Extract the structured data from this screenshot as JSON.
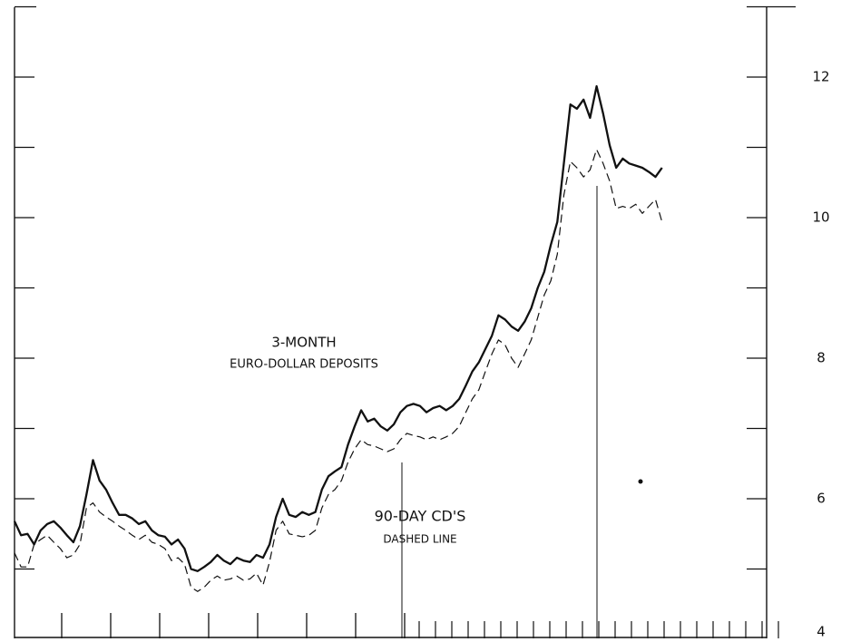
{
  "chart_data": {
    "type": "line",
    "annotations": [
      "3-MONTH",
      "EURO-DOLLAR DEPOSITS",
      "90-DAY CD'S",
      "DASHED LINE"
    ],
    "x": [
      0,
      1,
      2,
      3,
      4,
      5,
      6,
      7,
      8,
      9,
      10,
      11,
      12,
      13,
      14,
      15,
      16,
      17,
      18,
      19,
      20,
      21,
      22,
      23,
      24,
      25,
      26,
      27,
      28,
      29,
      30,
      31,
      32,
      33,
      34,
      35,
      36,
      37,
      38,
      39,
      40,
      41,
      42,
      43,
      44,
      45,
      46,
      47,
      48,
      49,
      50,
      51,
      52,
      53,
      54,
      55,
      56,
      57,
      58,
      59,
      60,
      61,
      62,
      63,
      64,
      65,
      66,
      67,
      68,
      69,
      70,
      71,
      72,
      73,
      74,
      75,
      76,
      77,
      78,
      79,
      80,
      81,
      82,
      83,
      84,
      85,
      86,
      87,
      88,
      89,
      90,
      91,
      92,
      93,
      94,
      95,
      96,
      97,
      98,
      99
    ],
    "xlim": [
      0,
      115
    ],
    "ylim": [
      4,
      13
    ],
    "yticks": [
      4,
      6,
      8,
      10,
      12
    ],
    "minor_yticks": [
      5,
      7,
      9,
      11,
      13
    ],
    "series": [
      {
        "color": "#111111",
        "dashed": false,
        "values": [
          5.68,
          5.48,
          5.5,
          5.35,
          5.55,
          5.64,
          5.68,
          5.59,
          5.48,
          5.38,
          5.61,
          6.06,
          6.55,
          6.26,
          6.13,
          5.94,
          5.77,
          5.77,
          5.72,
          5.64,
          5.68,
          5.55,
          5.48,
          5.46,
          5.35,
          5.42,
          5.29,
          5.0,
          4.97,
          5.03,
          5.1,
          5.2,
          5.12,
          5.07,
          5.16,
          5.12,
          5.1,
          5.2,
          5.16,
          5.35,
          5.74,
          6.0,
          5.77,
          5.74,
          5.81,
          5.77,
          5.81,
          6.13,
          6.32,
          6.39,
          6.45,
          6.77,
          7.03,
          7.26,
          7.1,
          7.14,
          7.03,
          6.97,
          7.06,
          7.23,
          7.32,
          7.35,
          7.32,
          7.23,
          7.29,
          7.32,
          7.26,
          7.32,
          7.42,
          7.61,
          7.81,
          7.94,
          8.13,
          8.32,
          8.61,
          8.55,
          8.45,
          8.39,
          8.52,
          8.71,
          9.0,
          9.23,
          9.61,
          9.94,
          10.77,
          11.61,
          11.55,
          11.68,
          11.42,
          11.87,
          11.48,
          11.03,
          10.71,
          10.84,
          10.77,
          10.74,
          10.71,
          10.65,
          10.58,
          10.71
        ]
      },
      {
        "color": "#111111",
        "dashed": true,
        "values": [
          5.23,
          5.03,
          5.03,
          5.35,
          5.42,
          5.48,
          5.38,
          5.29,
          5.16,
          5.2,
          5.35,
          5.87,
          5.94,
          5.81,
          5.74,
          5.68,
          5.61,
          5.55,
          5.48,
          5.42,
          5.48,
          5.38,
          5.35,
          5.29,
          5.12,
          5.16,
          5.07,
          4.74,
          4.68,
          4.74,
          4.84,
          4.9,
          4.84,
          4.86,
          4.9,
          4.84,
          4.86,
          4.94,
          4.77,
          5.1,
          5.55,
          5.68,
          5.5,
          5.48,
          5.46,
          5.48,
          5.55,
          5.87,
          6.06,
          6.13,
          6.26,
          6.52,
          6.71,
          6.84,
          6.77,
          6.75,
          6.71,
          6.67,
          6.71,
          6.84,
          6.93,
          6.9,
          6.88,
          6.84,
          6.88,
          6.84,
          6.88,
          6.93,
          7.03,
          7.23,
          7.42,
          7.55,
          7.81,
          8.06,
          8.26,
          8.19,
          8.0,
          7.87,
          8.06,
          8.26,
          8.58,
          8.9,
          9.1,
          9.48,
          10.32,
          10.8,
          10.71,
          10.58,
          10.68,
          10.97,
          10.77,
          10.52,
          10.13,
          10.16,
          10.13,
          10.19,
          10.06,
          10.16,
          10.26,
          9.94
        ]
      }
    ]
  }
}
